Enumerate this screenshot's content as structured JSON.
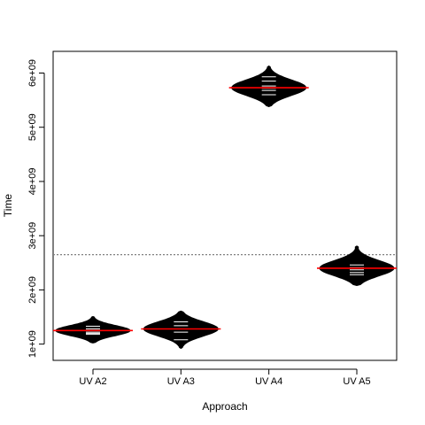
{
  "chart_data": {
    "type": "beanplot",
    "title": "",
    "xlabel": "Approach",
    "ylabel": "Time",
    "categories": [
      "UV A2",
      "UV A3",
      "UV A4",
      "UV A5"
    ],
    "ylim": [
      700000000,
      6400000000
    ],
    "yticks": [
      1000000000,
      2000000000,
      3000000000,
      4000000000,
      5000000000,
      6000000000
    ],
    "ytick_labels": [
      "1e+09",
      "2e+09",
      "3e+09",
      "4e+09",
      "5e+09",
      "6e+09"
    ],
    "overall_mean": 2650000000,
    "series": [
      {
        "name": "UV A2",
        "mean": 1250000000,
        "min": 1020000000,
        "max": 1510000000,
        "observations": [
          1180000000,
          1200000000,
          1220000000,
          1250000000,
          1280000000,
          1330000000
        ]
      },
      {
        "name": "UV A3",
        "mean": 1280000000,
        "min": 920000000,
        "max": 1610000000,
        "observations": [
          1080000000,
          1220000000,
          1280000000,
          1340000000,
          1410000000
        ]
      },
      {
        "name": "UV A4",
        "mean": 5730000000,
        "min": 5380000000,
        "max": 6130000000,
        "observations": [
          5600000000,
          5680000000,
          5720000000,
          5760000000,
          5850000000,
          5930000000
        ]
      },
      {
        "name": "UV A5",
        "mean": 2400000000,
        "min": 2080000000,
        "max": 2810000000,
        "observations": [
          2280000000,
          2320000000,
          2370000000,
          2410000000,
          2460000000
        ]
      }
    ],
    "colors": {
      "bean": "#000000",
      "observation_line": "#ffffff",
      "mean_line": "#ff0000",
      "overall_mean_line": "#808080",
      "frame": "#000000"
    }
  }
}
